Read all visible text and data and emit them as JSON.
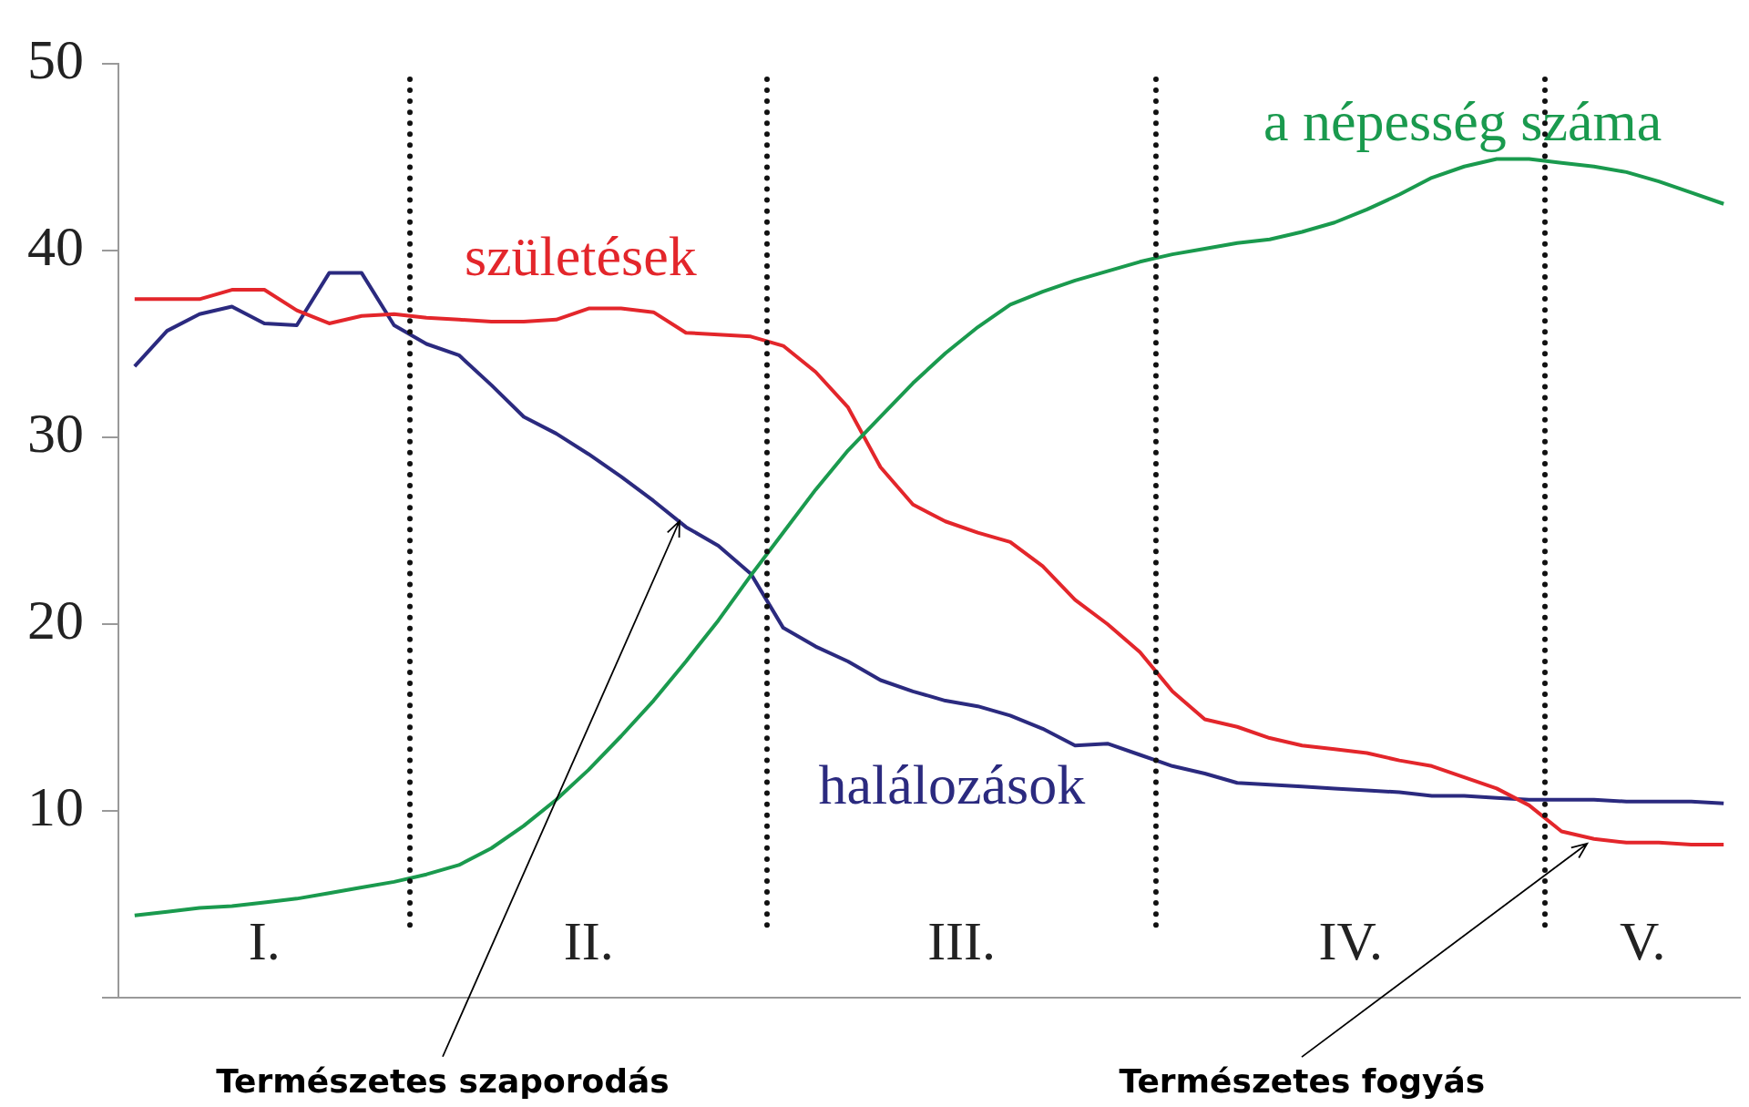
{
  "chart_data": {
    "type": "line",
    "categories": [
      null,
      null,
      null,
      null,
      null,
      null,
      null,
      null,
      null,
      null,
      null,
      null,
      null,
      null,
      null,
      null,
      null,
      null,
      null,
      null,
      null,
      null,
      null,
      null,
      null,
      null,
      null,
      null,
      null,
      null,
      null,
      null,
      null,
      null,
      null,
      null,
      null,
      null,
      null,
      null,
      null,
      null,
      null,
      null,
      null,
      null,
      null,
      null,
      null,
      null
    ],
    "ylim": [
      0,
      50
    ],
    "yticks": [
      {
        "value": 0,
        "label": null
      },
      10,
      20,
      30,
      40,
      50
    ],
    "tick_labels": "y",
    "grid": false,
    "legend": false,
    "marker": "none",
    "line_style": "solid",
    "series": [
      {
        "name": "a népesség száma",
        "color": "#1a9a4e",
        "values": [
          4.4,
          4.6,
          4.8,
          4.9,
          5.1,
          5.3,
          5.6,
          5.9,
          6.2,
          6.6,
          7.1,
          8.0,
          9.2,
          10.6,
          12.2,
          14.0,
          15.9,
          18.0,
          20.2,
          22.6,
          24.9,
          27.2,
          29.3,
          31.1,
          32.9,
          34.5,
          35.9,
          37.1,
          37.8,
          38.4,
          38.9,
          39.4,
          39.8,
          40.1,
          40.4,
          40.6,
          41.0,
          41.5,
          42.2,
          43.0,
          43.9,
          44.5,
          44.9,
          44.9,
          44.7,
          44.5,
          44.2,
          43.7,
          43.1,
          42.5
        ]
      },
      {
        "name": "születések",
        "color": "#e3262b",
        "values": [
          37.4,
          37.4,
          37.4,
          37.9,
          37.9,
          36.8,
          36.1,
          36.5,
          36.6,
          36.4,
          36.3,
          36.2,
          36.2,
          36.3,
          36.9,
          36.9,
          36.7,
          35.6,
          35.5,
          35.4,
          34.9,
          33.5,
          31.6,
          28.4,
          26.4,
          25.5,
          24.9,
          24.4,
          23.1,
          21.3,
          20.0,
          18.5,
          16.4,
          14.9,
          14.5,
          13.9,
          13.5,
          13.3,
          13.1,
          12.7,
          12.4,
          11.8,
          11.2,
          10.3,
          8.9,
          8.5,
          8.3,
          8.3,
          8.2,
          8.2
        ]
      },
      {
        "name": "halálozások",
        "color": "#2b2a7f",
        "values": [
          33.8,
          35.7,
          36.6,
          37.0,
          36.1,
          36.0,
          38.8,
          38.8,
          36.0,
          35.0,
          34.4,
          32.8,
          31.1,
          30.2,
          29.1,
          27.9,
          26.6,
          25.2,
          24.2,
          22.7,
          19.8,
          18.8,
          18.0,
          17.0,
          16.4,
          15.9,
          15.6,
          15.1,
          14.4,
          13.5,
          13.6,
          13.0,
          12.4,
          12.0,
          11.5,
          11.4,
          11.3,
          11.2,
          11.1,
          11.0,
          10.8,
          10.8,
          10.7,
          10.6,
          10.6,
          10.6,
          10.5,
          10.5,
          10.5,
          10.4
        ]
      }
    ],
    "annotations": [
      "I.",
      "II.",
      "III.",
      "IV.",
      "V.",
      "Természetes szaporodás",
      "Természetes fogyás"
    ]
  }
}
